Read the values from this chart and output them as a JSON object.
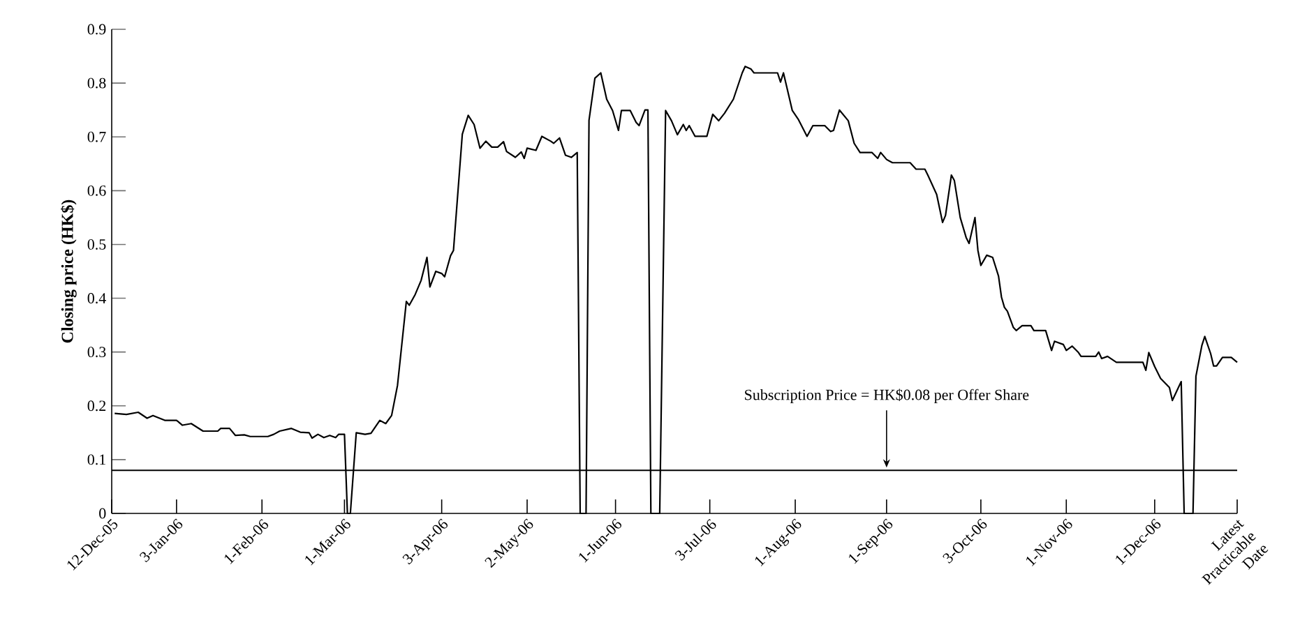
{
  "chart_data": {
    "type": "line",
    "ylabel": "Closing price (HK$)",
    "color": "#000000",
    "marker": "none",
    "line_style": "solid",
    "grid": false,
    "x": [
      "2005-12-13",
      "2005-12-17",
      "2005-12-21",
      "2005-12-24",
      "2005-12-26",
      "2005-12-30",
      "2006-01-03",
      "2006-01-05",
      "2006-01-08",
      "2006-01-12",
      "2006-01-17",
      "2006-01-18",
      "2006-01-21",
      "2006-01-23",
      "2006-01-26",
      "2006-01-28",
      "2006-02-03",
      "2006-02-05",
      "2006-02-07",
      "2006-02-11",
      "2006-02-14",
      "2006-02-17",
      "2006-02-18",
      "2006-02-20",
      "2006-02-22",
      "2006-02-24",
      "2006-02-26",
      "2006-02-27",
      "2006-03-01",
      "2006-03-02",
      "2006-03-03",
      "2006-03-05",
      "2006-03-08",
      "2006-03-10",
      "2006-03-13",
      "2006-03-15",
      "2006-03-17",
      "2006-03-19",
      "2006-03-22",
      "2006-03-23",
      "2006-03-25",
      "2006-03-27",
      "2006-03-29",
      "2006-03-30",
      "2006-04-01",
      "2006-04-03",
      "2006-04-04",
      "2006-04-06",
      "2006-04-07",
      "2006-04-10",
      "2006-04-12",
      "2006-04-14",
      "2006-04-16",
      "2006-04-18",
      "2006-04-20",
      "2006-04-22",
      "2006-04-24",
      "2006-04-25",
      "2006-04-28",
      "2006-04-30",
      "2006-05-01",
      "2006-05-02",
      "2006-05-05",
      "2006-05-07",
      "2006-05-10",
      "2006-05-11",
      "2006-05-13",
      "2006-05-15",
      "2006-05-17",
      "2006-05-19",
      "2006-05-20",
      "2006-05-22",
      "2006-05-23",
      "2006-05-25",
      "2006-05-27",
      "2006-05-29",
      "2006-05-31",
      "2006-06-02",
      "2006-06-03",
      "2006-06-06",
      "2006-06-08",
      "2006-06-09",
      "2006-06-11",
      "2006-06-12",
      "2006-06-13",
      "2006-06-16",
      "2006-06-18",
      "2006-06-20",
      "2006-06-22",
      "2006-06-24",
      "2006-06-25",
      "2006-06-26",
      "2006-06-28",
      "2006-07-02",
      "2006-07-04",
      "2006-07-06",
      "2006-07-08",
      "2006-07-11",
      "2006-07-14",
      "2006-07-15",
      "2006-07-17",
      "2006-07-18",
      "2006-07-26",
      "2006-07-27",
      "2006-07-28",
      "2006-07-31",
      "2006-08-02",
      "2006-08-05",
      "2006-08-07",
      "2006-08-11",
      "2006-08-13",
      "2006-08-14",
      "2006-08-16",
      "2006-08-19",
      "2006-08-21",
      "2006-08-23",
      "2006-08-27",
      "2006-08-29",
      "2006-08-30",
      "2006-09-01",
      "2006-09-03",
      "2006-09-06",
      "2006-09-09",
      "2006-09-11",
      "2006-09-14",
      "2006-09-15",
      "2006-09-18",
      "2006-09-20",
      "2006-09-21",
      "2006-09-23",
      "2006-09-24",
      "2006-09-26",
      "2006-09-28",
      "2006-09-29",
      "2006-10-01",
      "2006-10-02",
      "2006-10-03",
      "2006-10-05",
      "2006-10-07",
      "2006-10-09",
      "2006-10-10",
      "2006-10-11",
      "2006-10-12",
      "2006-10-14",
      "2006-10-15",
      "2006-10-17",
      "2006-10-20",
      "2006-10-21",
      "2006-10-25",
      "2006-10-27",
      "2006-10-28",
      "2006-10-31",
      "2006-11-01",
      "2006-11-03",
      "2006-11-05",
      "2006-11-06",
      "2006-11-11",
      "2006-11-12",
      "2006-11-13",
      "2006-11-15",
      "2006-11-18",
      "2006-11-27",
      "2006-11-28",
      "2006-11-29",
      "2006-12-01",
      "2006-12-03",
      "2006-12-06",
      "2006-12-07",
      "2006-12-10",
      "2006-12-11",
      "2006-12-14",
      "2006-12-15",
      "2006-12-17",
      "2006-12-18",
      "2006-12-20",
      "2006-12-21",
      "2006-12-22",
      "2006-12-24",
      "2006-12-27",
      "2006-12-29"
    ],
    "values": [
      0.186,
      0.184,
      0.188,
      0.177,
      0.182,
      0.173,
      0.173,
      0.164,
      0.167,
      0.153,
      0.153,
      0.158,
      0.158,
      0.145,
      0.146,
      0.143,
      0.143,
      0.147,
      0.153,
      0.158,
      0.151,
      0.15,
      0.14,
      0.147,
      0.141,
      0.145,
      0.141,
      0.147,
      0.147,
      0,
      0,
      0.15,
      0.147,
      0.149,
      0.173,
      0.167,
      0.182,
      0.238,
      0.394,
      0.387,
      0.407,
      0.433,
      0.476,
      0.421,
      0.45,
      0.446,
      0.44,
      0.479,
      0.489,
      0.705,
      0.74,
      0.723,
      0.679,
      0.692,
      0.681,
      0.681,
      0.691,
      0.673,
      0.662,
      0.672,
      0.66,
      0.679,
      0.675,
      0.701,
      0.692,
      0.688,
      0.698,
      0.666,
      0.662,
      0.671,
      0,
      0,
      0.731,
      0.809,
      0.819,
      0.77,
      0.749,
      0.712,
      0.749,
      0.749,
      0.727,
      0.721,
      0.75,
      0.75,
      0,
      0,
      0.749,
      0.73,
      0.704,
      0.723,
      0.712,
      0.721,
      0.701,
      0.701,
      0.742,
      0.73,
      0.744,
      0.77,
      0.819,
      0.831,
      0.826,
      0.819,
      0.819,
      0.802,
      0.819,
      0.749,
      0.733,
      0.701,
      0.721,
      0.721,
      0.71,
      0.712,
      0.75,
      0.73,
      0.688,
      0.671,
      0.671,
      0.66,
      0.671,
      0.658,
      0.652,
      0.652,
      0.652,
      0.64,
      0.64,
      0.629,
      0.593,
      0.541,
      0.554,
      0.629,
      0.619,
      0.55,
      0.513,
      0.502,
      0.55,
      0.489,
      0.461,
      0.48,
      0.476,
      0.441,
      0.402,
      0.383,
      0.376,
      0.346,
      0.34,
      0.349,
      0.349,
      0.34,
      0.34,
      0.303,
      0.32,
      0.314,
      0.303,
      0.311,
      0.3,
      0.292,
      0.292,
      0.3,
      0.288,
      0.292,
      0.281,
      0.281,
      0.266,
      0.299,
      0.273,
      0.251,
      0.234,
      0.21,
      0.245,
      0,
      0,
      0.255,
      0.312,
      0.329,
      0.297,
      0.274,
      0.274,
      0.29,
      0.29,
      0.281
    ],
    "xlim": [
      "2005-12-12",
      "2006-12-29"
    ],
    "xticks": [
      {
        "value": "2005-12-12",
        "label": "12-Dec-05"
      },
      {
        "value": "2006-01-03",
        "label": "3-Jan-06"
      },
      {
        "value": "2006-02-01",
        "label": "1-Feb-06"
      },
      {
        "value": "2006-03-01",
        "label": "1-Mar-06"
      },
      {
        "value": "2006-04-03",
        "label": "3-Apr-06"
      },
      {
        "value": "2006-05-02",
        "label": "2-May-06"
      },
      {
        "value": "2006-06-01",
        "label": "1-Jun-06"
      },
      {
        "value": "2006-07-03",
        "label": "3-Jul-06"
      },
      {
        "value": "2006-08-01",
        "label": "1-Aug-06"
      },
      {
        "value": "2006-09-01",
        "label": "1-Sep-06"
      },
      {
        "value": "2006-10-03",
        "label": "3-Oct-06"
      },
      {
        "value": "2006-11-01",
        "label": "1-Nov-06"
      },
      {
        "value": "2006-12-01",
        "label": "1-Dec-06"
      },
      {
        "value": "2006-12-29",
        "label": "Latest Practicable Date"
      }
    ],
    "ylim": [
      0,
      0.9
    ],
    "yticks": [
      0,
      0.1,
      0.2,
      0.3,
      0.4,
      0.5,
      0.6,
      0.7,
      0.8,
      0.9
    ],
    "ref_lines": [
      {
        "axis": "y",
        "value": 0.08,
        "color": "#000000",
        "line_style": "solid"
      }
    ],
    "annotations": [
      {
        "text": "Subscription Price = HK$0.08 per Offer Share",
        "x": "2006-09-01",
        "y": 0.08
      }
    ]
  }
}
